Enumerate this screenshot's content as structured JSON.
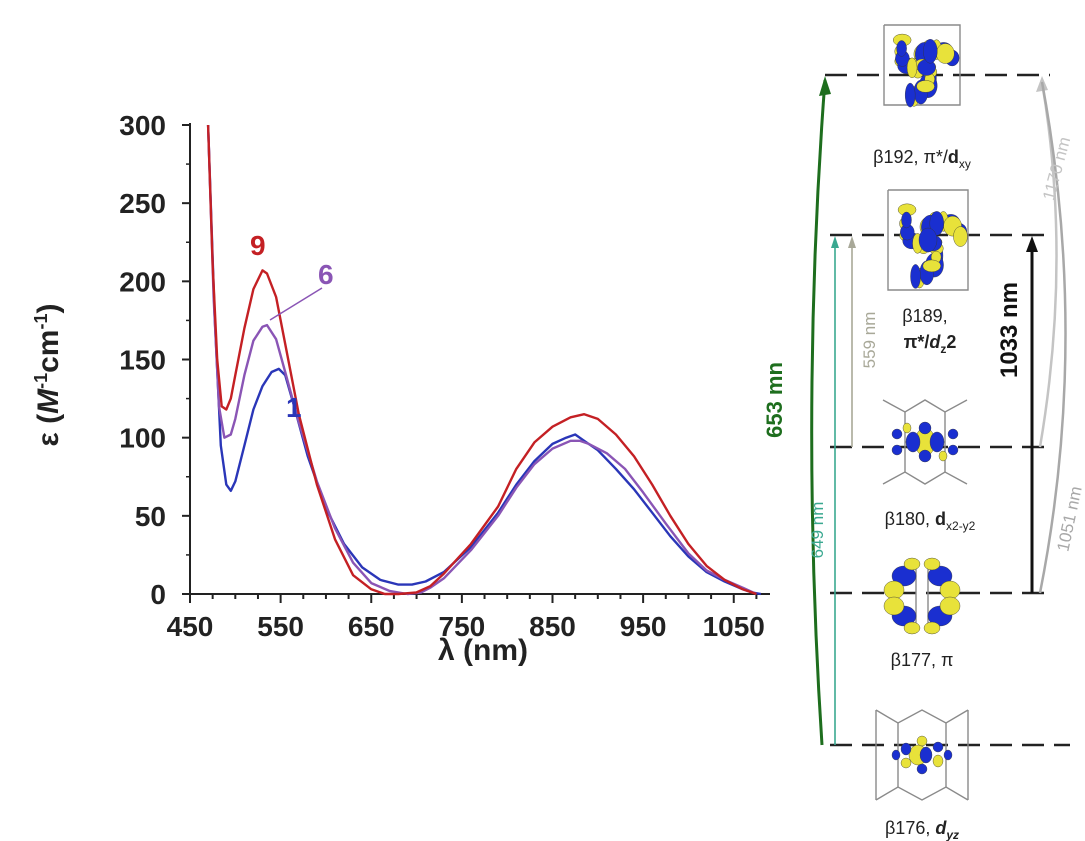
{
  "chart_data": {
    "type": "line",
    "xlabel": "λ (nm)",
    "ylabel_parts": [
      "ε (",
      "M",
      "-1",
      "cm",
      "-1",
      ")"
    ],
    "xlim": [
      450,
      1090
    ],
    "ylim": [
      0,
      300
    ],
    "xticks": [
      "450",
      "550",
      "650",
      "750",
      "850",
      "950",
      "1050"
    ],
    "yticks": [
      "0",
      "50",
      "100",
      "150",
      "200",
      "250",
      "300"
    ],
    "series": [
      {
        "name": "1",
        "color": "#2a36b8",
        "x": [
          470,
          477,
          484,
          490,
          495,
          500,
          510,
          520,
          530,
          540,
          548,
          555,
          565,
          580,
          600,
          620,
          640,
          660,
          680,
          695,
          710,
          730,
          760,
          790,
          810,
          830,
          850,
          865,
          875,
          885,
          900,
          920,
          940,
          960,
          980,
          1000,
          1020,
          1040,
          1060,
          1070,
          1080
        ],
        "y": [
          300,
          180,
          95,
          70,
          66,
          72,
          95,
          118,
          133,
          142,
          144,
          140,
          120,
          88,
          55,
          32,
          17,
          9,
          6,
          6,
          8,
          14,
          30,
          52,
          70,
          85,
          96,
          100,
          102,
          98,
          92,
          80,
          67,
          52,
          37,
          24,
          14,
          8,
          3,
          1,
          0
        ]
      },
      {
        "name": "6",
        "color": "#8a55b5",
        "x": [
          470,
          476,
          482,
          488,
          495,
          500,
          510,
          520,
          530,
          535,
          545,
          555,
          570,
          590,
          610,
          630,
          650,
          670,
          690,
          705,
          715,
          730,
          760,
          790,
          810,
          830,
          850,
          870,
          880,
          890,
          910,
          930,
          950,
          975,
          1000,
          1020,
          1040,
          1060,
          1075
        ],
        "y": [
          300,
          190,
          120,
          100,
          102,
          112,
          140,
          162,
          171,
          172,
          163,
          142,
          110,
          72,
          42,
          20,
          7,
          2,
          0,
          1,
          4,
          10,
          28,
          50,
          68,
          83,
          93,
          98,
          98,
          96,
          90,
          80,
          65,
          45,
          26,
          15,
          9,
          4,
          0
        ]
      },
      {
        "name": "9",
        "color": "#c42024",
        "x": [
          470,
          475,
          480,
          485,
          490,
          495,
          500,
          510,
          520,
          530,
          535,
          545,
          555,
          570,
          590,
          610,
          630,
          650,
          665,
          680,
          700,
          715,
          730,
          760,
          790,
          810,
          830,
          850,
          870,
          885,
          900,
          920,
          940,
          960,
          980,
          1000,
          1020,
          1040,
          1060,
          1075
        ],
        "y": [
          300,
          210,
          150,
          120,
          118,
          125,
          140,
          170,
          195,
          207,
          205,
          190,
          160,
          115,
          70,
          35,
          12,
          3,
          0,
          0,
          1,
          5,
          13,
          32,
          56,
          80,
          97,
          107,
          113,
          115,
          112,
          102,
          88,
          70,
          50,
          32,
          18,
          9,
          3,
          0
        ]
      }
    ]
  },
  "labels": {
    "series_9": "9",
    "series_6": "6",
    "series_1": "1"
  },
  "diagram": {
    "orbitals": [
      {
        "id": "b192",
        "label_plain": "β192, π*/",
        "label_bold": "d",
        "label_sub": "xy"
      },
      {
        "id": "b189",
        "label_line1": "β189,",
        "label_line2_plain": "π*/",
        "label_line2_bold": "d",
        "label_line2_sub": "z",
        "label_line2_tail": "2"
      },
      {
        "id": "b180",
        "label_plain": "β180, ",
        "label_bold": "d",
        "label_sub": "x2-y2"
      },
      {
        "id": "b177",
        "label_plain": "β177, π"
      },
      {
        "id": "b176",
        "label_plain": "β176, ",
        "label_bold": "d",
        "label_sub": "yz"
      }
    ],
    "transitions": [
      {
        "label": "653 mn",
        "color": "#1e6e1e"
      },
      {
        "label": "649 nm",
        "color": "#3aa890"
      },
      {
        "label": "559 nm",
        "color": "#a8a898"
      },
      {
        "label": "1033 nm",
        "color": "#111111"
      },
      {
        "label": "1170 nm",
        "color": "#c4c4c4"
      },
      {
        "label": "1051 nm",
        "color": "#a8a8a8"
      }
    ]
  }
}
